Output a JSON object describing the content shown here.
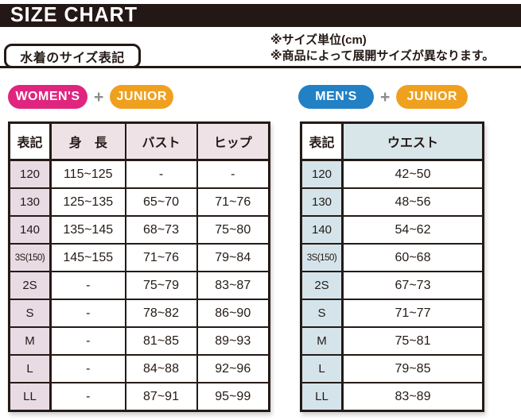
{
  "header": {
    "title": "SIZE CHART"
  },
  "section": {
    "tab_label": "水着のサイズ表記",
    "note_line1": "※サイズ単位(cm)",
    "note_line2": "※商品によって展開サイズが異なります。"
  },
  "badges": {
    "womens": "WOMEN'S",
    "mens": "MEN'S",
    "junior": "JUNIOR",
    "plus": "+"
  },
  "colors": {
    "title_bar_black": "#231815",
    "womens_pink": "#e0257f",
    "mens_blue": "#2280c4",
    "junior_orange": "#f0a01f",
    "plus_gray": "#8c8c8c",
    "women_header_bg": "#efe2e7",
    "women_rowlabel_bg": "#e8dbe3",
    "men_header_bg": "#d8e5e9",
    "men_rowlabel_bg": "#d4e4ea",
    "table_border": "#241a16"
  },
  "women_table": {
    "headers": [
      "表記",
      "身　長",
      "バスト",
      "ヒップ"
    ],
    "rows": [
      [
        "120",
        "115~125",
        "-",
        "-"
      ],
      [
        "130",
        "125~135",
        "65~70",
        "71~76"
      ],
      [
        "140",
        "135~145",
        "68~73",
        "75~80"
      ],
      [
        "3S(150)",
        "145~155",
        "71~76",
        "79~84"
      ],
      [
        "2S",
        "-",
        "75~79",
        "83~87"
      ],
      [
        "S",
        "-",
        "78~82",
        "86~90"
      ],
      [
        "M",
        "-",
        "81~85",
        "89~93"
      ],
      [
        "L",
        "-",
        "84~88",
        "92~96"
      ],
      [
        "LL",
        "-",
        "87~91",
        "95~99"
      ]
    ]
  },
  "men_table": {
    "headers": [
      "表記",
      "ウエスト"
    ],
    "rows": [
      [
        "120",
        "42~50"
      ],
      [
        "130",
        "48~56"
      ],
      [
        "140",
        "54~62"
      ],
      [
        "3S(150)",
        "60~68"
      ],
      [
        "2S",
        "67~73"
      ],
      [
        "S",
        "71~77"
      ],
      [
        "M",
        "75~81"
      ],
      [
        "L",
        "79~85"
      ],
      [
        "LL",
        "83~89"
      ]
    ]
  }
}
